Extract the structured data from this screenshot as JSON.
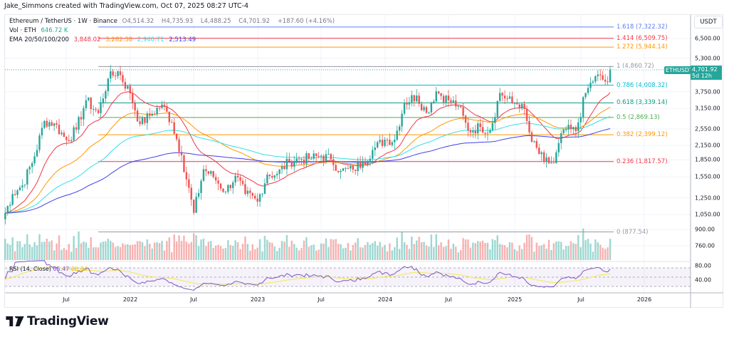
{
  "credit": "Jake_Simmons created with TradingView.com, Oct 07, 2025 08:27 UTC-4",
  "legend": {
    "symbol": "Ethereum / TetherUS · 1W · Binance",
    "o_label": "O",
    "o": "4,514.32",
    "h_label": "H",
    "h": "4,735.93",
    "l_label": "L",
    "l": "4,488.25",
    "c_label": "C",
    "c": "4,701.92",
    "change": "+187.60 (+4.16%)",
    "vol_label": "Vol · ETH",
    "vol": "646.72 K",
    "ema_label": "EMA 20/50/100/200",
    "ema_values": [
      "3,848.02",
      "3,282.38",
      "2,946.71",
      "2,513.49"
    ]
  },
  "axis": {
    "currency": "USDT",
    "price_ticks": [
      "6,500.00",
      "5,300.00",
      "3,750.00",
      "3,150.00",
      "2,550.00",
      "2,150.00",
      "1,850.00",
      "1,550.00",
      "1,250.00",
      "1,050.00",
      "900.00",
      "760.00"
    ],
    "rsi_ticks": [
      "80.00",
      "40.00"
    ],
    "time_ticks": [
      "Jul",
      "2022",
      "Jul",
      "2023",
      "Jul",
      "2024",
      "Jul",
      "2025",
      "Jul",
      "2026"
    ]
  },
  "last_price": {
    "symbol": "ETHUSDT",
    "price": "4,701.92",
    "countdown": "5d 12h"
  },
  "fib_levels": [
    {
      "label": "1.618 (7,322.32)",
      "price": 7322.32,
      "color": "#5b7cf7"
    },
    {
      "label": "1.414 (6,509.75)",
      "price": 6509.75,
      "color": "#f23645"
    },
    {
      "label": "1.272 (5,944.14)",
      "price": 5944.14,
      "color": "#ff9800"
    },
    {
      "label": "1 (4,860.72)",
      "price": 4860.72,
      "color": "#9598a1"
    },
    {
      "label": "0.786 (4,008.32)",
      "price": 4008.32,
      "color": "#00bcd4"
    },
    {
      "label": "0.618 (3,339.14)",
      "price": 3339.14,
      "color": "#089981"
    },
    {
      "label": "0.5 (2,869.13)",
      "price": 2869.13,
      "color": "#4caf50"
    },
    {
      "label": "0.382 (2,399.12)",
      "price": 2399.12,
      "color": "#ff9800"
    },
    {
      "label": "0.236 (1,817.57)",
      "price": 1817.57,
      "color": "#f23645"
    },
    {
      "label": "0 (877.54)",
      "price": 877.54,
      "color": "#9598a1"
    }
  ],
  "rsi": {
    "label": "RSI (14, Close)",
    "value": "65.47",
    "ma": "66.64"
  },
  "colors": {
    "up": "#26a69a",
    "down": "#ef5350",
    "ema20": "#f23645",
    "ema50": "#ff9800",
    "ema100": "#33e0e8",
    "ema200": "#3f3fe8",
    "rsi": "#7e57c2",
    "rsi_ma": "#f5e94a"
  },
  "chart_data": {
    "type": "candlestick",
    "interval": "1W",
    "scale": "log",
    "monthly_closes_from": "2021-01",
    "monthly_closes": [
      1300,
      1420,
      1920,
      2770,
      2700,
      2270,
      2530,
      3430,
      3000,
      4290,
      4630,
      3680,
      2680,
      2920,
      3280,
      2730,
      1940,
      1070,
      1680,
      1550,
      1330,
      1570,
      1300,
      1200,
      1590,
      1600,
      1820,
      1870,
      1870,
      1930,
      1860,
      1650,
      1670,
      1810,
      2050,
      2280,
      2280,
      3340,
      3600,
      3010,
      3760,
      3430,
      3230,
      2510,
      2600,
      2520,
      3700,
      3330,
      3300,
      2230,
      1820,
      1790,
      2530,
      2490,
      3700,
      4400,
      4140,
      4701.92
    ],
    "start_price": 1000
  },
  "brand": "TradingView"
}
